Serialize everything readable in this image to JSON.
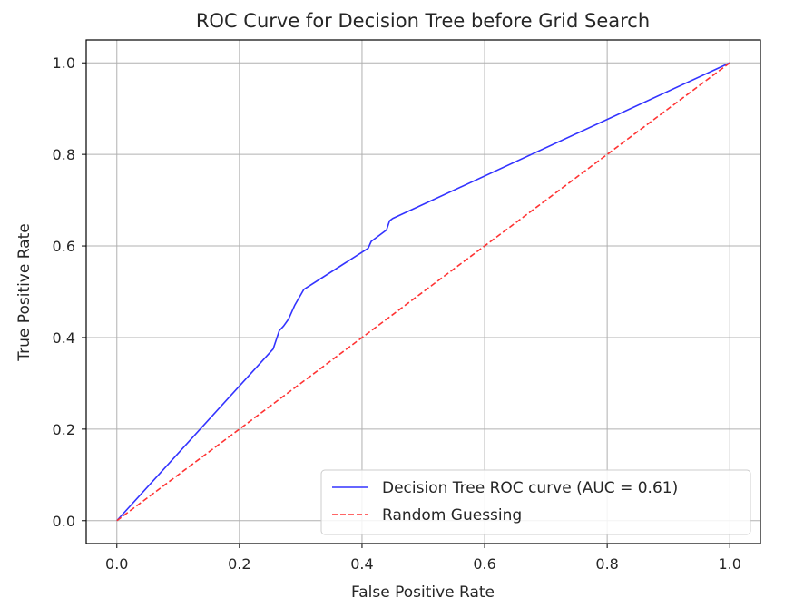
{
  "chart_data": {
    "type": "line",
    "title": "ROC Curve for Decision Tree before Grid Search",
    "xlabel": "False Positive Rate",
    "ylabel": "True Positive Rate",
    "xlim": [
      -0.05,
      1.05
    ],
    "ylim": [
      -0.05,
      1.05
    ],
    "xticks": [
      0.0,
      0.2,
      0.4,
      0.6,
      0.8,
      1.0
    ],
    "yticks": [
      0.0,
      0.2,
      0.4,
      0.6,
      0.8,
      1.0
    ],
    "xtick_labels": [
      "0.0",
      "0.2",
      "0.4",
      "0.6",
      "0.8",
      "1.0"
    ],
    "ytick_labels": [
      "0.0",
      "0.2",
      "0.4",
      "0.6",
      "0.8",
      "1.0"
    ],
    "grid": true,
    "legend_position": "lower-right",
    "series": [
      {
        "name": "Decision Tree ROC curve (AUC = 0.61)",
        "color": "#3333ff",
        "style": "solid",
        "x": [
          0.0,
          0.255,
          0.265,
          0.272,
          0.28,
          0.29,
          0.305,
          0.41,
          0.415,
          0.44,
          0.445,
          0.45,
          1.0
        ],
        "y": [
          0.0,
          0.375,
          0.415,
          0.425,
          0.44,
          0.47,
          0.505,
          0.595,
          0.61,
          0.635,
          0.655,
          0.66,
          1.0
        ]
      },
      {
        "name": "Random Guessing",
        "color": "#ff3333",
        "style": "dashed",
        "x": [
          0.0,
          1.0
        ],
        "y": [
          0.0,
          1.0
        ]
      }
    ]
  }
}
